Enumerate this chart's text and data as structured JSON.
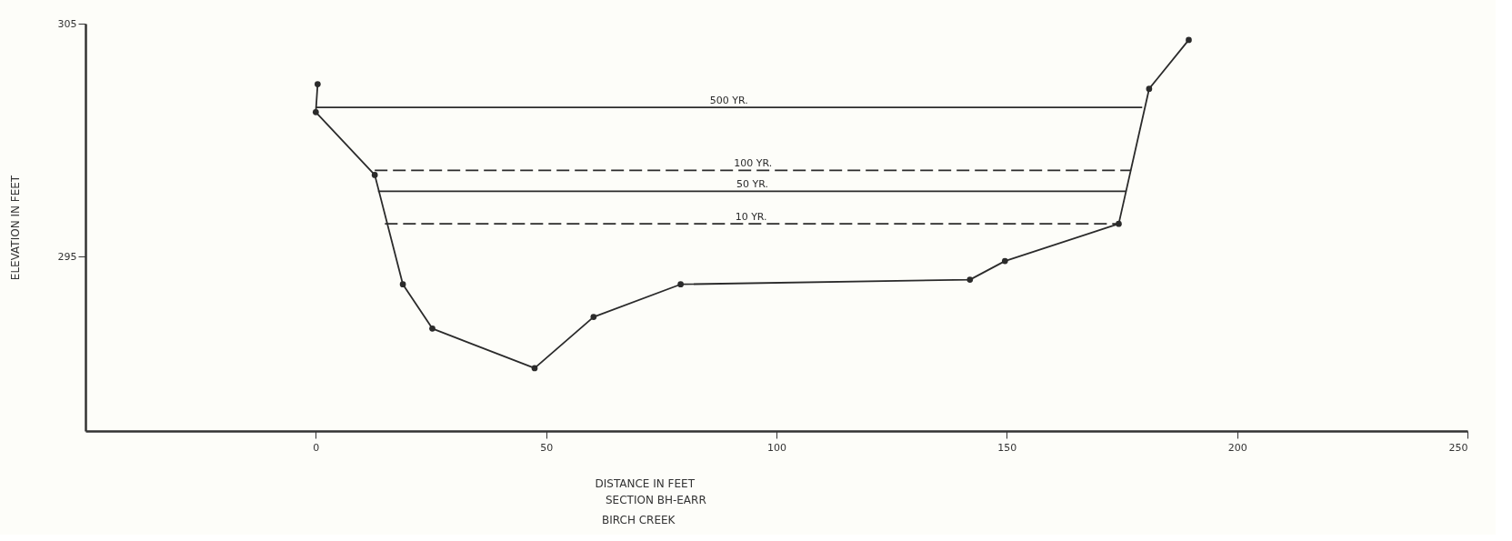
{
  "chart_data": {
    "type": "line",
    "xlabel": "DISTANCE IN FEET",
    "ylabel": "ELEVATION IN FEET",
    "annotations": [
      "SECTION BH-EARR",
      "BIRCH CREEK"
    ],
    "xlim": [
      -50,
      250
    ],
    "xticks": [
      0,
      50,
      100,
      150,
      200,
      250
    ],
    "ylim": [
      287.5,
      305
    ],
    "yticks": [
      295,
      305
    ],
    "grid": false,
    "legend": false,
    "series": [
      {
        "color": "#2b2b2b",
        "marker": "circle",
        "line_style": "solid",
        "x": [
          0.4,
          0,
          12.8,
          18.9,
          25.3,
          47.5,
          60.3,
          79.2,
          142,
          149.6,
          174.3,
          180.9,
          189.5
        ],
        "values": [
          302.4,
          301.2,
          298.5,
          293.8,
          291.9,
          290.2,
          292.4,
          293.8,
          294.0,
          294.8,
          296.4,
          302.2,
          304.3
        ]
      },
      {
        "name": "500 YR.",
        "color": "#2b2b2b",
        "line_style": "solid",
        "x": [
          0,
          179.4
        ],
        "values": [
          301.4,
          301.4
        ]
      },
      {
        "name": "100 YR.",
        "color": "#2b2b2b",
        "line_style": "dashed",
        "x": [
          12.8,
          177
        ],
        "values": [
          298.7,
          298.7
        ]
      },
      {
        "name": "50 YR.",
        "color": "#2b2b2b",
        "line_style": "solid",
        "x": [
          13.5,
          176
        ],
        "values": [
          297.8,
          297.8
        ]
      },
      {
        "name": "10 YR.",
        "color": "#2b2b2b",
        "line_style": "dashed",
        "x": [
          15,
          174
        ],
        "values": [
          296.4,
          296.4
        ]
      }
    ]
  }
}
